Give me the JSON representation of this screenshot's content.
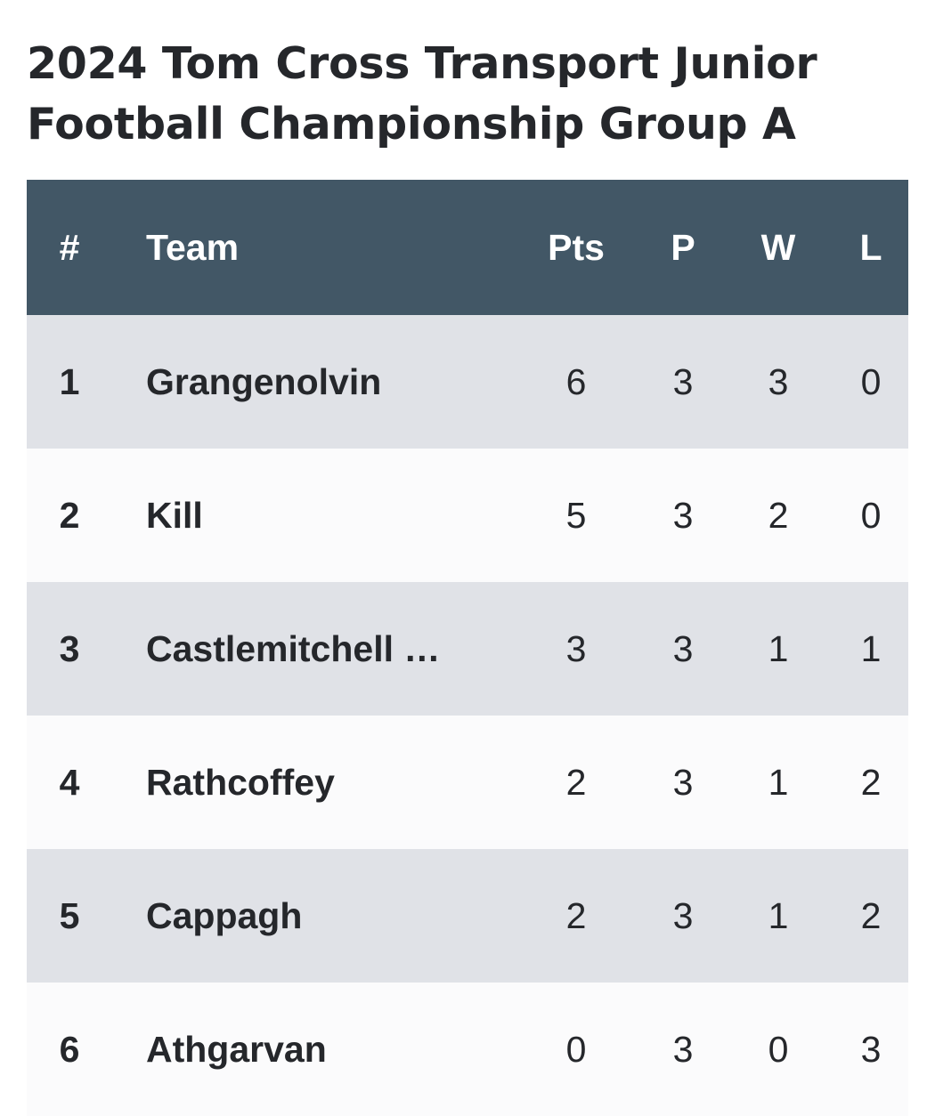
{
  "title": "2024 Tom Cross Transport Junior Football Championship Group A",
  "table": {
    "header": {
      "rank": "#",
      "team": "Team",
      "pts": "Pts",
      "p": "P",
      "w": "W",
      "l": "L"
    },
    "rows": [
      {
        "rank": "1",
        "team": "Grangenolvin",
        "pts": "6",
        "p": "3",
        "w": "3",
        "l": "0"
      },
      {
        "rank": "2",
        "team": "Kill",
        "pts": "5",
        "p": "3",
        "w": "2",
        "l": "0"
      },
      {
        "rank": "3",
        "team": "Castlemitchell …",
        "pts": "3",
        "p": "3",
        "w": "1",
        "l": "1"
      },
      {
        "rank": "4",
        "team": "Rathcoffey",
        "pts": "2",
        "p": "3",
        "w": "1",
        "l": "2"
      },
      {
        "rank": "5",
        "team": "Cappagh",
        "pts": "2",
        "p": "3",
        "w": "1",
        "l": "2"
      },
      {
        "rank": "6",
        "team": "Athgarvan",
        "pts": "0",
        "p": "3",
        "w": "0",
        "l": "3"
      }
    ]
  },
  "colors": {
    "header_bg": "#425766",
    "header_text": "#ffffff",
    "row_odd_bg": "#e0e2e7",
    "row_even_bg": "#fbfbfc",
    "text": "#25272b"
  }
}
